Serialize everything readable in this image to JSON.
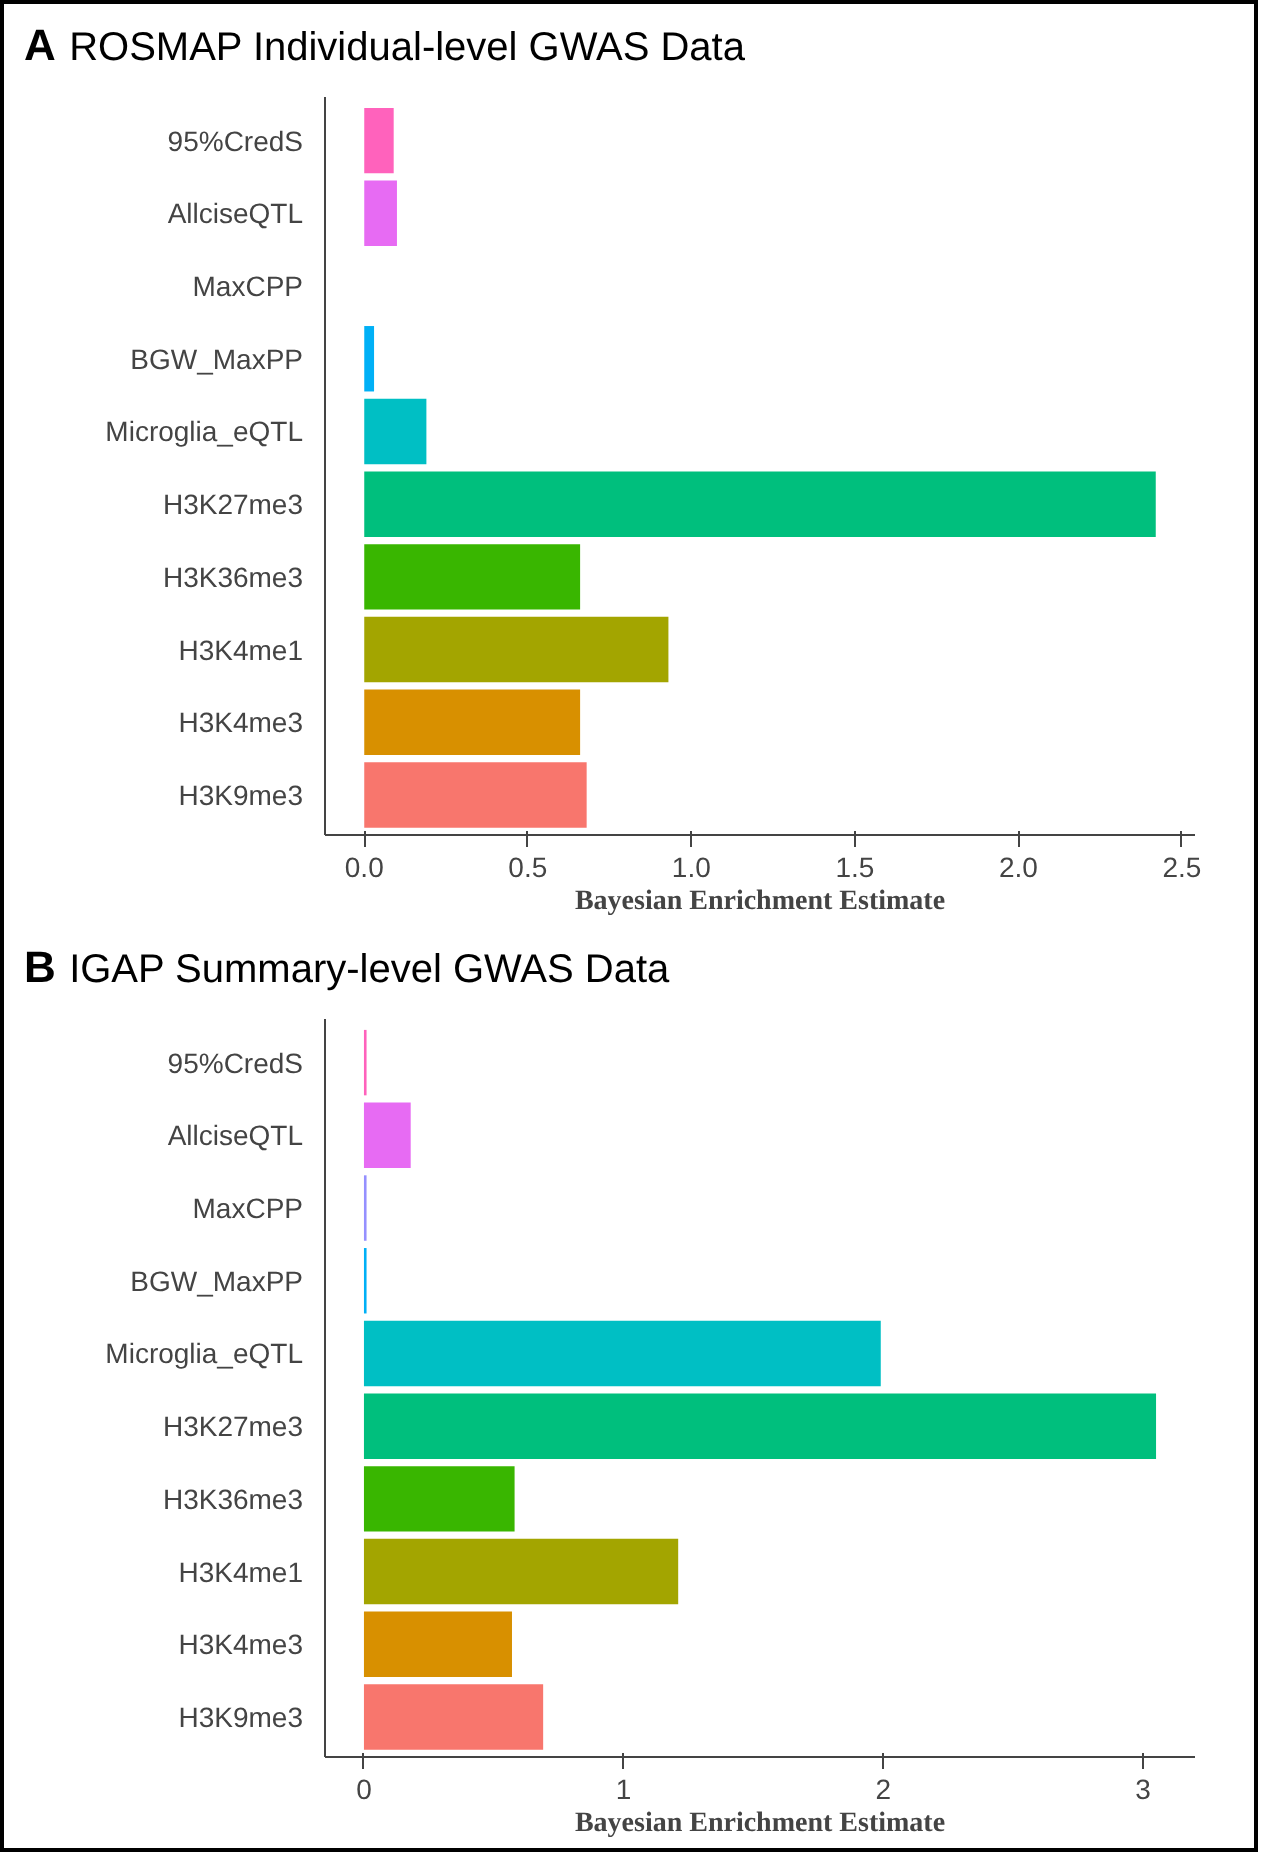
{
  "chart_data": [
    {
      "type": "bar",
      "orientation": "horizontal",
      "title": "ROSMAP Individual-level GWAS Data",
      "annotations": [
        "A"
      ],
      "xlabel": "Bayesian Enrichment Estimate",
      "categories": [
        "95%CredS",
        "AllciseQTL",
        "MaxCPP",
        "BGW_MaxPP",
        "Microglia_eQTL",
        "H3K27me3",
        "H3K36me3",
        "H3K4me1",
        "H3K4me3",
        "H3K9me3"
      ],
      "values": [
        0.09,
        0.1,
        0,
        0.03,
        0.19,
        2.42,
        0.66,
        0.93,
        0.66,
        0.68
      ],
      "colors": [
        "#ff62bc",
        "#e76bf3",
        "#9590ff",
        "#00b0f6",
        "#00bfc4",
        "#00bf7d",
        "#39b600",
        "#a3a500",
        "#d89000",
        "#f8766d"
      ],
      "xlim": [
        -0.12,
        2.54
      ],
      "xticks": [
        {
          "value": 0,
          "label": "0.0"
        },
        0.5,
        {
          "value": 1,
          "label": "1.0"
        },
        1.5,
        {
          "value": 2,
          "label": "2.0"
        },
        2.5
      ],
      "grid": false
    },
    {
      "type": "bar",
      "orientation": "horizontal",
      "title": "IGAP Summary-level GWAS Data",
      "annotations": [
        "B"
      ],
      "xlabel": "Bayesian Enrichment Estimate",
      "categories": [
        "95%CredS",
        "AllciseQTL",
        "MaxCPP",
        "BGW_MaxPP",
        "Microglia_eQTL",
        "H3K27me3",
        "H3K36me3",
        "H3K4me1",
        "H3K4me3",
        "H3K9me3"
      ],
      "values": [
        0.01,
        0.18,
        0.01,
        0.01,
        1.99,
        3.05,
        0.58,
        1.21,
        0.57,
        0.69
      ],
      "colors": [
        "#ff62bc",
        "#e76bf3",
        "#9590ff",
        "#00b0f6",
        "#00bfc4",
        "#00bf7d",
        "#39b600",
        "#a3a500",
        "#d89000",
        "#f8766d"
      ],
      "xlim": [
        -0.15,
        3.2
      ],
      "xticks": [
        0,
        1,
        2,
        3
      ],
      "grid": false
    }
  ]
}
